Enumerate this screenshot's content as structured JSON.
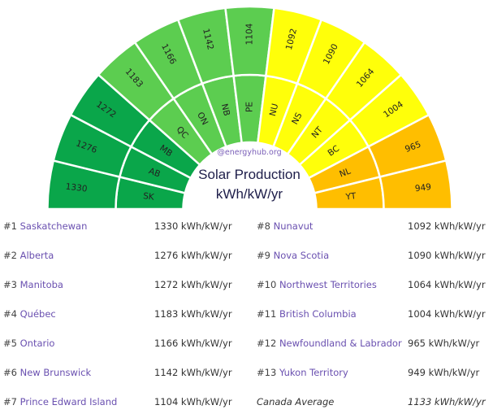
{
  "chart_data": {
    "type": "pie",
    "subtype": "semicircle-sunburst",
    "title": "Solar Production",
    "subtitle": "kWh/kW/yr",
    "watermark": "@energyhub.org",
    "unit": "kWh/kW/yr",
    "segments": [
      {
        "code": "SK",
        "value": 1330,
        "color": "#0aa64a"
      },
      {
        "code": "AB",
        "value": 1276,
        "color": "#0aa64a"
      },
      {
        "code": "MB",
        "value": 1272,
        "color": "#0aa64a"
      },
      {
        "code": "QC",
        "value": 1183,
        "color": "#5ccd50"
      },
      {
        "code": "ON",
        "value": 1166,
        "color": "#5ccd50"
      },
      {
        "code": "NB",
        "value": 1142,
        "color": "#5ccd50"
      },
      {
        "code": "PE",
        "value": 1104,
        "color": "#5ccd50"
      },
      {
        "code": "NU",
        "value": 1092,
        "color": "#ffff0a"
      },
      {
        "code": "NS",
        "value": 1090,
        "color": "#ffff0a"
      },
      {
        "code": "NT",
        "value": 1064,
        "color": "#ffff0a"
      },
      {
        "code": "BC",
        "value": 1004,
        "color": "#ffff0a"
      },
      {
        "code": "NL",
        "value": 965,
        "color": "#ffbe00"
      },
      {
        "code": "YT",
        "value": 949,
        "color": "#ffbe00"
      }
    ]
  },
  "ranking": [
    {
      "rank": "#1",
      "name": "Saskatchewan",
      "value": "1330 kWh/kW/yr"
    },
    {
      "rank": "#2",
      "name": "Alberta",
      "value": "1276 kWh/kW/yr"
    },
    {
      "rank": "#3",
      "name": "Manitoba",
      "value": "1272 kWh/kW/yr"
    },
    {
      "rank": "#4",
      "name": "Québec",
      "value": "1183 kWh/kW/yr"
    },
    {
      "rank": "#5",
      "name": "Ontario",
      "value": "1166 kWh/kW/yr"
    },
    {
      "rank": "#6",
      "name": "New Brunswick",
      "value": "1142 kWh/kW/yr"
    },
    {
      "rank": "#7",
      "name": "Prince Edward Island",
      "value": "1104 kWh/kW/yr"
    },
    {
      "rank": "#8",
      "name": "Nunavut",
      "value": "1092 kWh/kW/yr"
    },
    {
      "rank": "#9",
      "name": "Nova Scotia",
      "value": "1090 kWh/kW/yr"
    },
    {
      "rank": "#10",
      "name": "Northwest Territories",
      "value": "1064 kWh/kW/yr"
    },
    {
      "rank": "#11",
      "name": "British Columbia",
      "value": "1004 kWh/kW/yr"
    },
    {
      "rank": "#12",
      "name": "Newfoundland & Labrador",
      "value": "965 kWh/kW/yr"
    },
    {
      "rank": "#13",
      "name": "Yukon Territory",
      "value": "949 kWh/kW/yr"
    }
  ],
  "average": {
    "label": "Canada Average",
    "value": "1133 kWh/kW/yr"
  }
}
